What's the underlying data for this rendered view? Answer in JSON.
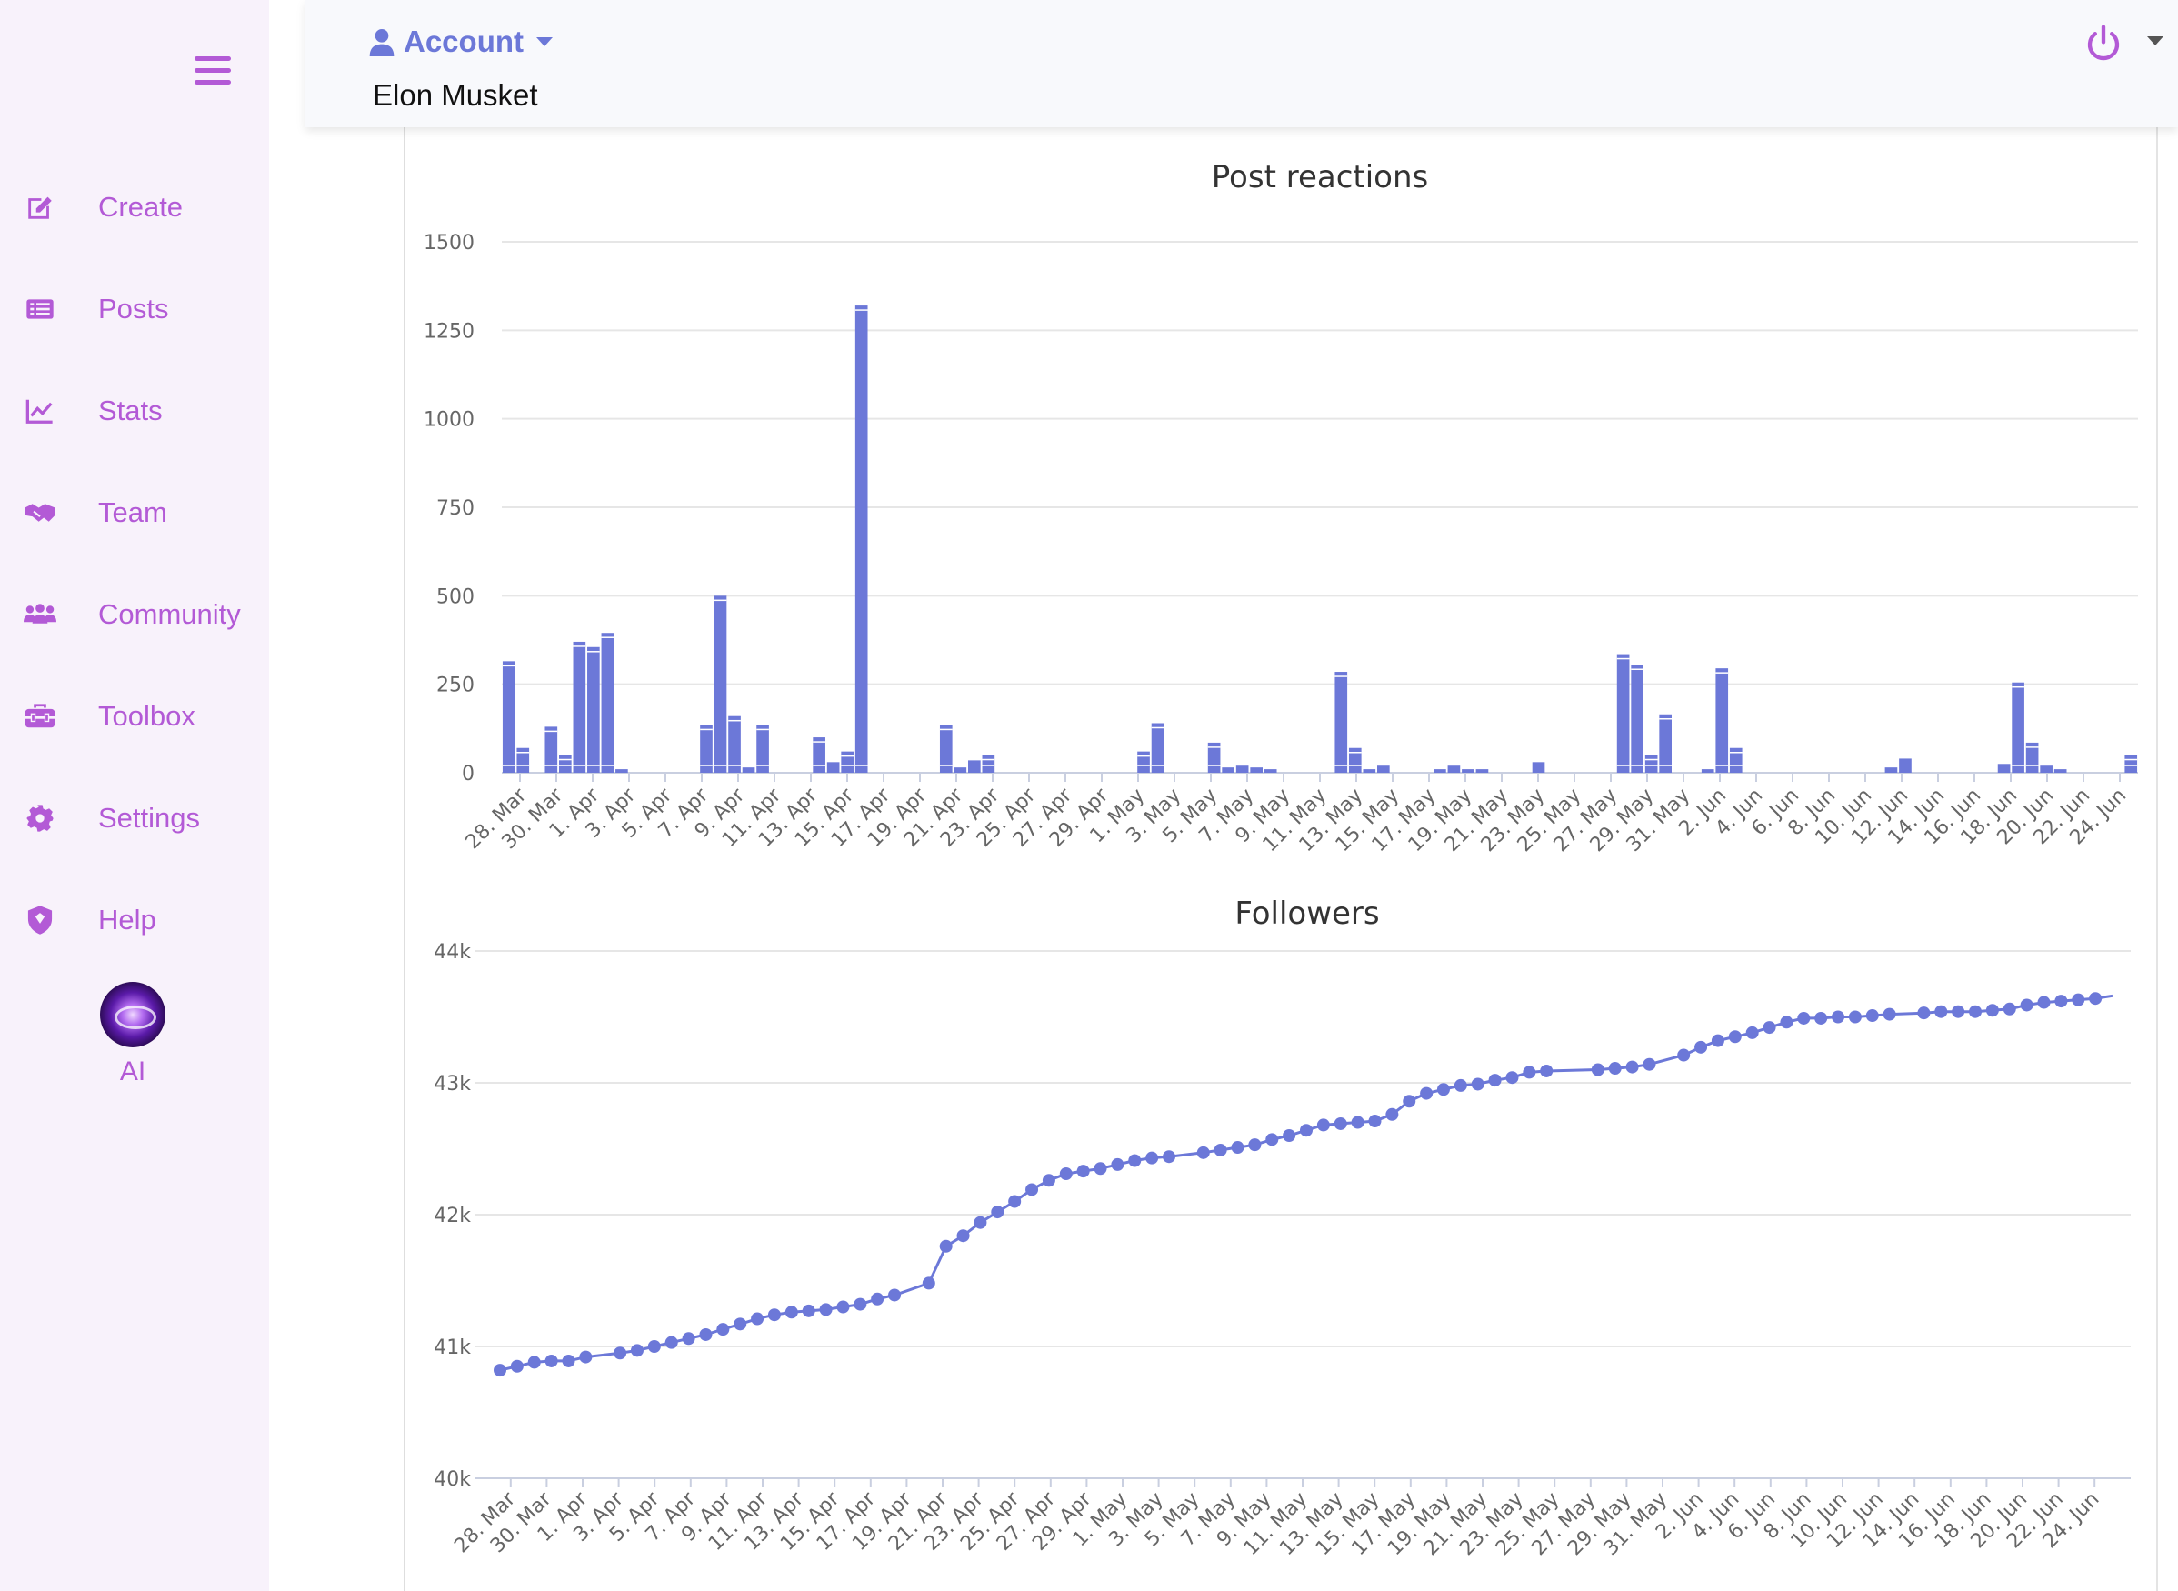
{
  "sidebar": {
    "items": [
      {
        "label": "Create",
        "icon": "edit-icon"
      },
      {
        "label": "Posts",
        "icon": "list-icon"
      },
      {
        "label": "Stats",
        "icon": "chart-line-icon"
      },
      {
        "label": "Team",
        "icon": "handshake-icon"
      },
      {
        "label": "Community",
        "icon": "users-icon"
      },
      {
        "label": "Toolbox",
        "icon": "toolbox-icon"
      },
      {
        "label": "Settings",
        "icon": "gear-icon"
      },
      {
        "label": "Help",
        "icon": "shield-icon"
      }
    ],
    "ai_label": "AI"
  },
  "header": {
    "account_label": "Account",
    "user_name": "Elon Musket"
  },
  "colors": {
    "accent": "#b35ad6",
    "chart_blue": "#6c78d8",
    "sidebar_bg": "#f8f2fb"
  },
  "chart_data": [
    {
      "type": "bar",
      "stacked": true,
      "title": "Post reactions",
      "xlabel": "",
      "ylabel": "",
      "ylim": [
        0,
        1500
      ],
      "yticks": [
        "0",
        "250",
        "500",
        "750",
        "1000",
        "1250",
        "1500"
      ],
      "tick_labels": [
        "28. Mar",
        "30. Mar",
        "1. Apr",
        "3. Apr",
        "5. Apr",
        "7. Apr",
        "9. Apr",
        "11. Apr",
        "13. Apr",
        "15. Apr",
        "17. Apr",
        "19. Apr",
        "21. Apr",
        "23. Apr",
        "25. Apr",
        "27. Apr",
        "29. Apr",
        "1. May",
        "3. May",
        "5. May",
        "7. May",
        "9. May",
        "11. May",
        "13. May",
        "15. May",
        "17. May",
        "19. May",
        "21. May",
        "23. May",
        "25. May",
        "27. May",
        "29. May",
        "31. May",
        "2. Jun",
        "4. Jun",
        "6. Jun",
        "8. Jun",
        "10. Jun",
        "12. Jun",
        "14. Jun",
        "16. Jun",
        "18. Jun",
        "20. Jun",
        "22. Jun",
        "24. Jun"
      ],
      "totals": [
        315,
        70,
        0,
        130,
        50,
        370,
        355,
        395,
        10,
        0,
        0,
        0,
        0,
        0,
        135,
        500,
        160,
        15,
        135,
        0,
        0,
        0,
        100,
        30,
        60,
        1320,
        0,
        0,
        0,
        0,
        0,
        135,
        15,
        35,
        50,
        0,
        0,
        0,
        0,
        0,
        0,
        0,
        0,
        0,
        0,
        60,
        140,
        0,
        0,
        0,
        85,
        15,
        20,
        15,
        10,
        0,
        0,
        0,
        0,
        285,
        70,
        10,
        20,
        0,
        0,
        0,
        10,
        20,
        10,
        10,
        0,
        0,
        0,
        30,
        0,
        0,
        0,
        0,
        0,
        335,
        305,
        50,
        165,
        0,
        0,
        10,
        295,
        70,
        0,
        0,
        0,
        0,
        0,
        0,
        0,
        0,
        0,
        0,
        15,
        40,
        0,
        0,
        0,
        0,
        0,
        0,
        25,
        255,
        85,
        20,
        10,
        0,
        0,
        0,
        0,
        50
      ]
    },
    {
      "type": "line",
      "title": "Followers",
      "xlabel": "",
      "ylabel": "",
      "ylim": [
        40000,
        44000
      ],
      "yticks": [
        "40k",
        "41k",
        "42k",
        "43k",
        "44k"
      ],
      "tick_labels": [
        "28. Mar",
        "30. Mar",
        "1. Apr",
        "3. Apr",
        "5. Apr",
        "7. Apr",
        "9. Apr",
        "11. Apr",
        "13. Apr",
        "15. Apr",
        "17. Apr",
        "19. Apr",
        "21. Apr",
        "23. Apr",
        "25. Apr",
        "27. Apr",
        "29. Apr",
        "1. May",
        "3. May",
        "5. May",
        "7. May",
        "9. May",
        "11. May",
        "13. May",
        "15. May",
        "17. May",
        "19. May",
        "21. May",
        "23. May",
        "25. May",
        "27. May",
        "29. May",
        "31. May",
        "2. Jun",
        "4. Jun",
        "6. Jun",
        "8. Jun",
        "10. Jun",
        "12. Jun",
        "14. Jun",
        "16. Jun",
        "18. Jun",
        "20. Jun",
        "22. Jun",
        "24. Jun"
      ],
      "values": [
        40820,
        40850,
        40880,
        40890,
        40890,
        40920,
        null,
        40950,
        40970,
        41000,
        41030,
        41060,
        41090,
        41130,
        41170,
        41210,
        41240,
        41260,
        41270,
        41280,
        41300,
        41320,
        41360,
        41390,
        null,
        41480,
        41760,
        41840,
        41940,
        42020,
        42100,
        42190,
        42260,
        42310,
        42330,
        42350,
        42380,
        42410,
        42430,
        42440,
        null,
        42470,
        42490,
        42510,
        42530,
        42570,
        42600,
        42640,
        42680,
        42690,
        42700,
        42710,
        42760,
        42860,
        42920,
        42950,
        42980,
        42990,
        43020,
        43040,
        43080,
        43090,
        null,
        null,
        43100,
        43110,
        43120,
        43140,
        null,
        43210,
        43270,
        43320,
        43350,
        43380,
        43420,
        43460,
        43490,
        43490,
        43500,
        43500,
        43510,
        43520,
        null,
        43530,
        43540,
        43540,
        43540,
        43550,
        43560,
        43590,
        43610,
        43620,
        43630,
        43640,
        43660
      ]
    }
  ]
}
